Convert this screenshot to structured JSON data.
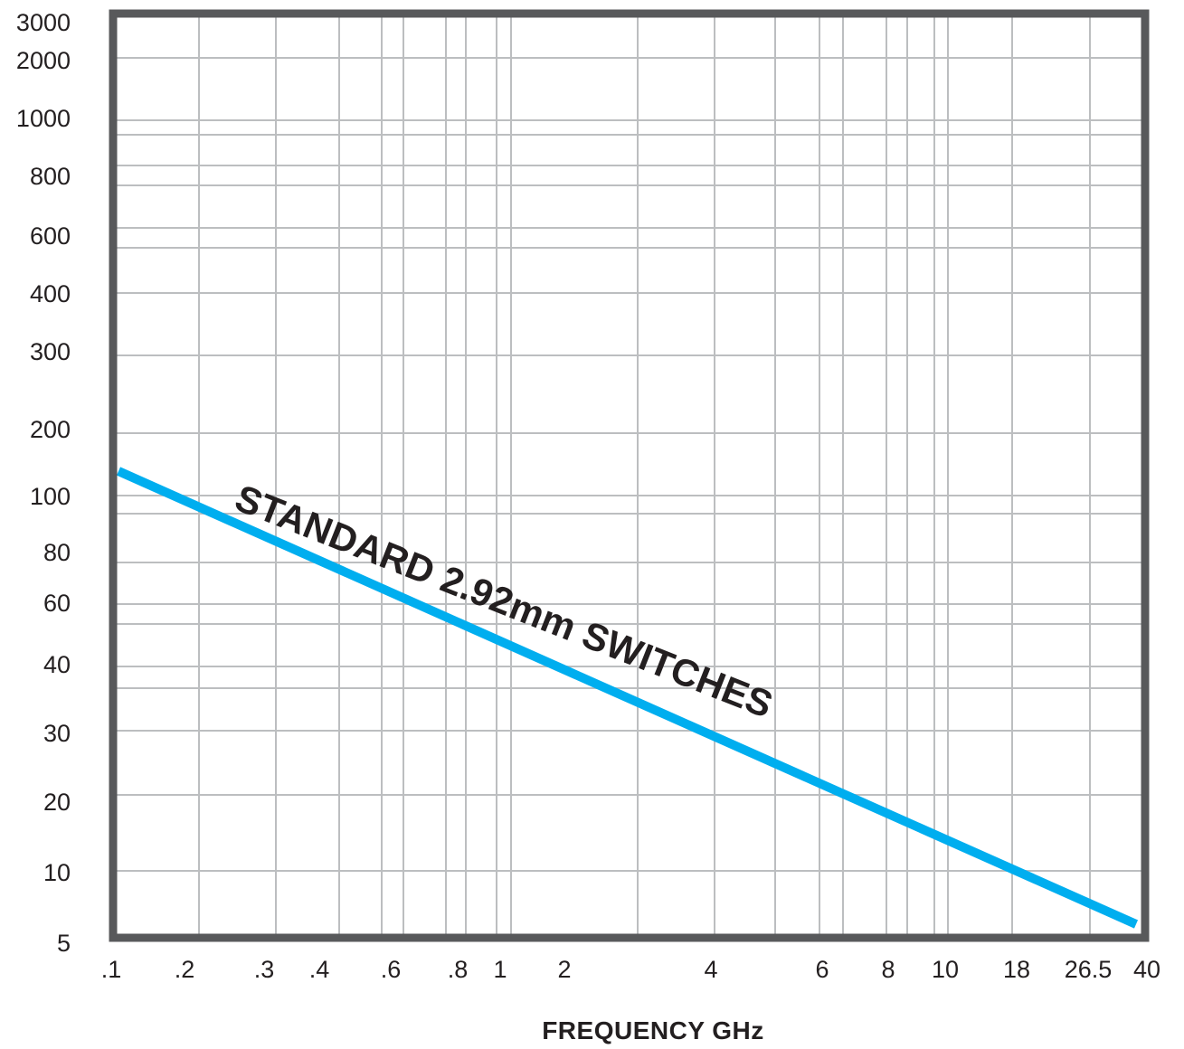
{
  "chart_data": {
    "type": "line",
    "title": "",
    "xlabel": "FREQUENCY GHz",
    "ylabel": "",
    "grid": true,
    "colors": {
      "series": "#00aeef",
      "frame": "#58595b",
      "grid": "#bcbec0",
      "text": "#231f20"
    },
    "x_ticks": [
      {
        "v": 0.1,
        "label": ".1"
      },
      {
        "v": 0.2,
        "label": ".2"
      },
      {
        "v": 0.3,
        "label": ".3"
      },
      {
        "v": 0.4,
        "label": ".4"
      },
      {
        "v": 0.6,
        "label": ".6"
      },
      {
        "v": 0.8,
        "label": ".8"
      },
      {
        "v": 1,
        "label": "1"
      },
      {
        "v": 2,
        "label": "2"
      },
      {
        "v": 4,
        "label": "4"
      },
      {
        "v": 6,
        "label": "6"
      },
      {
        "v": 8,
        "label": "8"
      },
      {
        "v": 10,
        "label": "10"
      },
      {
        "v": 18,
        "label": "18"
      },
      {
        "v": 26.5,
        "label": "26.5"
      },
      {
        "v": 40,
        "label": "40"
      }
    ],
    "y_ticks": [
      "3000",
      "2000",
      "1000",
      "800",
      "600",
      "400",
      "300",
      "200",
      "100",
      "80",
      "60",
      "40",
      "30",
      "20",
      "10",
      "5"
    ],
    "series": [
      {
        "name": "STANDARD 2.92mm SWITCHES",
        "x": [
          0.1,
          40
        ],
        "y": [
          128,
          5.8
        ]
      }
    ]
  }
}
